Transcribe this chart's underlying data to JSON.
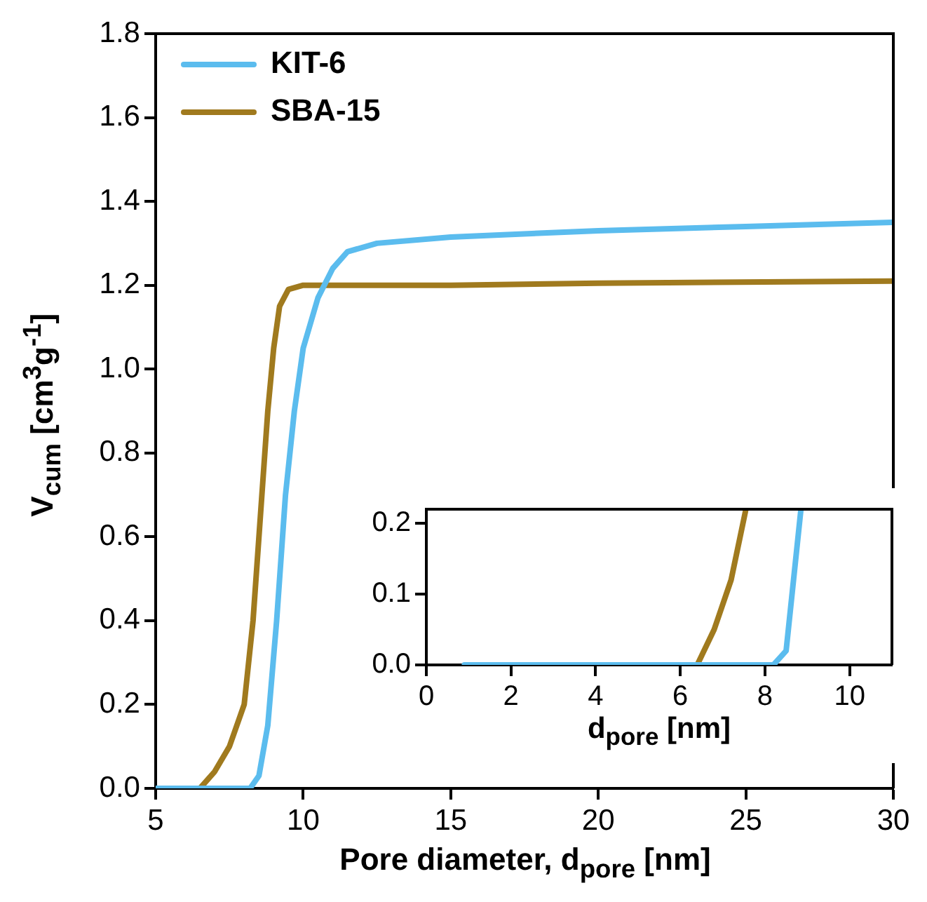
{
  "chart_data": [
    {
      "type": "line",
      "xlabel": "Pore diameter, d$_{pore}$ [nm]",
      "ylabel": "V$_{cum}$ [cm$^{3}$g$^{-1}$]",
      "xlim": [
        5,
        30
      ],
      "xticks": [
        5,
        10,
        15,
        20,
        25,
        30
      ],
      "ylim": [
        0,
        1.8
      ],
      "yticks": [
        {
          "value": 0,
          "label": "0.0"
        },
        {
          "value": 0.2,
          "label": "0.2"
        },
        {
          "value": 0.4,
          "label": "0.4"
        },
        {
          "value": 0.6,
          "label": "0.6"
        },
        {
          "value": 0.8,
          "label": "0.8"
        },
        {
          "value": 1.0,
          "label": "1.0"
        },
        {
          "value": 1.2,
          "label": "1.2"
        },
        {
          "value": 1.4,
          "label": "1.4"
        },
        {
          "value": 1.6,
          "label": "1.6"
        },
        {
          "value": 1.8,
          "label": "1.8"
        }
      ],
      "grid": false,
      "legend": "top left",
      "marker": "none",
      "line_style": "solid",
      "series": [
        {
          "name": "KIT-6",
          "color": "#5bbcee",
          "x": [
            5,
            8.2,
            8.5,
            8.8,
            9.1,
            9.4,
            9.7,
            10,
            10.5,
            11,
            11.5,
            12.5,
            15,
            20,
            25,
            30
          ],
          "values": [
            0,
            0,
            0.03,
            0.15,
            0.4,
            0.7,
            0.9,
            1.05,
            1.17,
            1.24,
            1.28,
            1.3,
            1.315,
            1.33,
            1.34,
            1.35
          ]
        },
        {
          "name": "SBA-15",
          "color": "#a07a1e",
          "x": [
            5,
            6.5,
            7,
            7.5,
            8,
            8.3,
            8.6,
            8.8,
            9,
            9.2,
            9.5,
            10,
            15,
            20,
            30
          ],
          "values": [
            0,
            0,
            0.04,
            0.1,
            0.2,
            0.4,
            0.7,
            0.9,
            1.05,
            1.15,
            1.19,
            1.2,
            1.2,
            1.205,
            1.21
          ]
        }
      ]
    },
    {
      "type": "line",
      "xlabel": "d$_{pore}$ [nm]",
      "xlim": [
        0,
        11
      ],
      "xticks": [
        0,
        2,
        4,
        6,
        8,
        10
      ],
      "ylim": [
        0,
        0.22
      ],
      "yticks": [
        {
          "value": 0,
          "label": "0.0"
        },
        {
          "value": 0.1,
          "label": "0.1"
        },
        {
          "value": 0.2,
          "label": "0.2"
        }
      ],
      "grid": false,
      "marker": "none",
      "line_style": "solid",
      "series": [
        {
          "color": "#5bbcee",
          "x": [
            0.9,
            8.2,
            8.5,
            8.85
          ],
          "values": [
            0,
            0,
            0.02,
            0.22
          ]
        },
        {
          "color": "#a07a1e",
          "x": [
            6.4,
            6.8,
            7.2,
            7.55
          ],
          "values": [
            0,
            0.05,
            0.12,
            0.22
          ]
        }
      ]
    }
  ]
}
